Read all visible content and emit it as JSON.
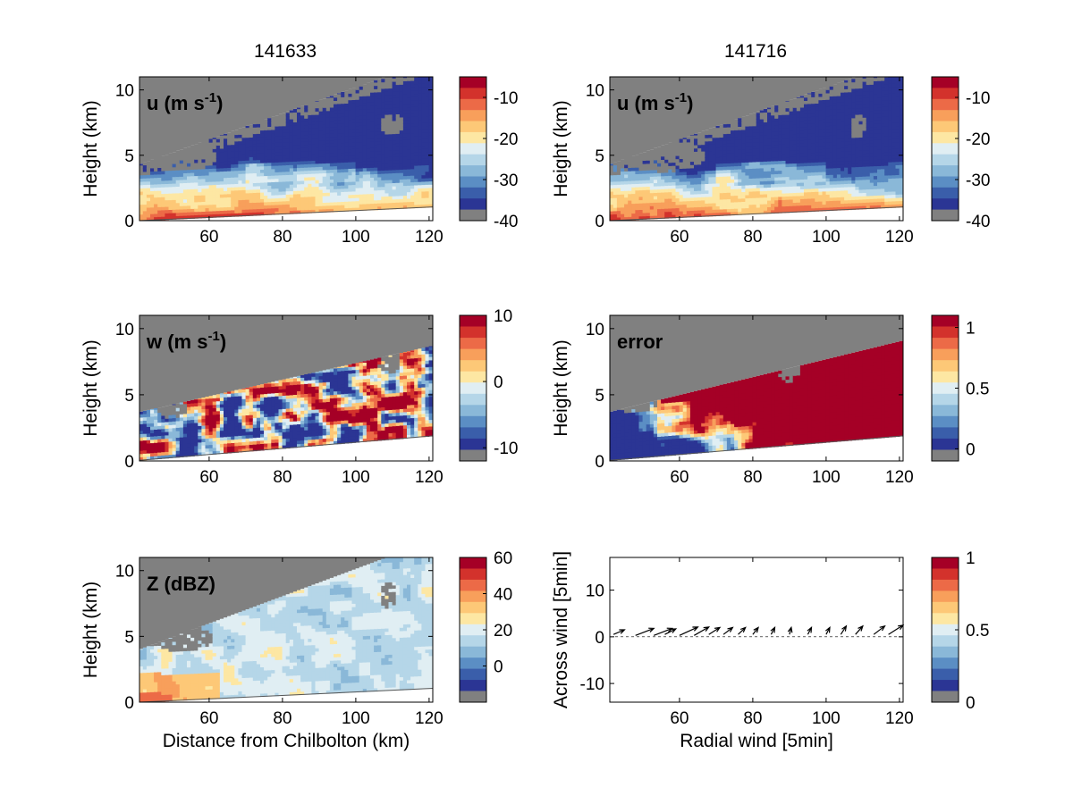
{
  "figure": {
    "column_titles": [
      "141633",
      "141716"
    ],
    "colors": {
      "masked": "#808080",
      "diverging_12": [
        "#2b3594",
        "#3a5eaa",
        "#5b8ec4",
        "#8ab8d8",
        "#b5d6e8",
        "#e0eef3",
        "#fde7a3",
        "#fdc877",
        "#f89f5b",
        "#ec6a47",
        "#d3322c",
        "#a50026"
      ],
      "arrow": "#000000"
    }
  },
  "chart_data": [
    {
      "id": "u-141633",
      "type": "heatmap",
      "column_title": "141633",
      "panel_label": {
        "main": "u (m s",
        "sup": "-1",
        "tail": ")"
      },
      "xlabel": "",
      "ylabel": "Height (km)",
      "xlim": [
        41,
        121
      ],
      "ylim": [
        0,
        11
      ],
      "xticks": [
        "60",
        "80",
        "100",
        "120"
      ],
      "yticks": [
        "0",
        "5",
        "10"
      ],
      "colorbar": {
        "range": [
          -40,
          -5
        ],
        "ticks": [
          "-10",
          "-20",
          "-30",
          "-40"
        ]
      },
      "coverage_top_km": {
        "x": [
          41,
          121
        ],
        "y": [
          4.3,
          12.3
        ]
      },
      "coverage_bottom_km": {
        "x": [
          41,
          121
        ],
        "y": [
          0.0,
          1.05
        ]
      },
      "description": "Easterly wind component, strongest (reddest, about -10) near the surface, bluer (-25 to -35) aloft"
    },
    {
      "id": "u-141716",
      "type": "heatmap",
      "column_title": "141716",
      "panel_label": {
        "main": "u (m s",
        "sup": "-1",
        "tail": ")"
      },
      "xlabel": "",
      "ylabel": "Height (km)",
      "xlim": [
        41,
        121
      ],
      "ylim": [
        0,
        11
      ],
      "xticks": [
        "60",
        "80",
        "100",
        "120"
      ],
      "yticks": [
        "0",
        "5",
        "10"
      ],
      "colorbar": {
        "range": [
          -40,
          -5
        ],
        "ticks": [
          "-10",
          "-20",
          "-30",
          "-40"
        ]
      },
      "coverage_top_km": {
        "x": [
          41,
          121
        ],
        "y": [
          4.3,
          12.3
        ]
      },
      "coverage_bottom_km": {
        "x": [
          41,
          121
        ],
        "y": [
          0.0,
          1.05
        ]
      }
    },
    {
      "id": "w-141633",
      "type": "heatmap",
      "panel_label": {
        "main": "w (m s",
        "sup": "-1",
        "tail": ")"
      },
      "xlabel": "",
      "ylabel": "Height (km)",
      "xlim": [
        41,
        121
      ],
      "ylim": [
        0,
        11
      ],
      "xticks": [
        "60",
        "80",
        "100",
        "120"
      ],
      "yticks": [
        "0",
        "5",
        "10"
      ],
      "colorbar": {
        "range": [
          -12,
          10
        ],
        "ticks": [
          "10",
          "0",
          "-10"
        ]
      },
      "coverage_top_km": {
        "x": [
          41,
          121
        ],
        "y": [
          3.7,
          8.7
        ]
      },
      "coverage_bottom_km": {
        "x": [
          41,
          121
        ],
        "y": [
          0.05,
          1.9
        ]
      },
      "description": "Vertical wind component, alternating strong updraft (red) and downdraft (blue) cells"
    },
    {
      "id": "error-141716",
      "type": "heatmap",
      "panel_label": {
        "main": "error",
        "sup": "",
        "tail": ""
      },
      "xlabel": "",
      "ylabel": "Height (km)",
      "xlim": [
        41,
        121
      ],
      "ylim": [
        0,
        11
      ],
      "xticks": [
        "60",
        "80",
        "100",
        "120"
      ],
      "yticks": [
        "0",
        "5",
        "10"
      ],
      "colorbar": {
        "range": [
          -0.1,
          1.1
        ],
        "ticks": [
          "1",
          "0.5",
          "0"
        ]
      },
      "coverage_top_km": {
        "x": [
          41,
          121
        ],
        "y": [
          3.7,
          9.1
        ]
      },
      "coverage_bottom_km": {
        "x": [
          41,
          121
        ],
        "y": [
          0.05,
          1.9
        ]
      },
      "description": "Retrieval error, low (blue) at short range, saturated (about 1, dark red) aloft and beyond 80 km"
    },
    {
      "id": "Z-141633",
      "type": "heatmap",
      "panel_label": {
        "main": "Z (dBZ)",
        "sup": "",
        "tail": ""
      },
      "xlabel": "Distance from Chilbolton (km)",
      "ylabel": "Height (km)",
      "xlim": [
        41,
        121
      ],
      "ylim": [
        0,
        11
      ],
      "xticks": [
        "60",
        "80",
        "100",
        "120"
      ],
      "yticks": [
        "0",
        "5",
        "10"
      ],
      "colorbar": {
        "range": [
          -20,
          60
        ],
        "ticks": [
          "60",
          "40",
          "20",
          "0"
        ]
      },
      "coverage_top_km": {
        "x": [
          41,
          121
        ],
        "y": [
          4.0,
          12.3
        ]
      },
      "coverage_bottom_km": {
        "x": [
          41,
          121
        ],
        "y": [
          0.0,
          1.05
        ]
      },
      "description": "Radar reflectivity, mostly 10-25 dBZ, about 30 dBZ in low levels below 60 km"
    },
    {
      "id": "wind-arrows",
      "type": "scatter",
      "marker": "arrow",
      "xlabel": "Radial wind [5min]",
      "ylabel": "Across wind [5min]",
      "xlim": [
        41,
        121
      ],
      "ylim": [
        -14,
        17
      ],
      "xticks": [
        "60",
        "80",
        "100",
        "120"
      ],
      "yticks": [
        "10",
        "0",
        "-10"
      ],
      "colorbar": {
        "range": [
          0,
          1
        ],
        "ticks": [
          "1",
          "0.5",
          "0"
        ]
      },
      "arrows": [
        {
          "x": 42,
          "y": 0.5,
          "dx": 3,
          "dy": 1.0
        },
        {
          "x": 48,
          "y": 0.3,
          "dx": 5,
          "dy": 1.5
        },
        {
          "x": 53,
          "y": 0.3,
          "dx": 5,
          "dy": 1.5
        },
        {
          "x": 56,
          "y": 0.5,
          "dx": 3,
          "dy": 1.2
        },
        {
          "x": 60,
          "y": 0.3,
          "dx": 5,
          "dy": 1.8
        },
        {
          "x": 64,
          "y": 0.3,
          "dx": 4,
          "dy": 1.8
        },
        {
          "x": 68,
          "y": 0.5,
          "dx": 3,
          "dy": 1.5
        },
        {
          "x": 72,
          "y": 0.5,
          "dx": 2.5,
          "dy": 1.5
        },
        {
          "x": 76,
          "y": 0.5,
          "dx": 2,
          "dy": 1.5
        },
        {
          "x": 80,
          "y": 0.5,
          "dx": 1.5,
          "dy": 1.5
        },
        {
          "x": 85,
          "y": 0.5,
          "dx": 1,
          "dy": 1.5
        },
        {
          "x": 90,
          "y": 0.5,
          "dx": 0.5,
          "dy": 1.5
        },
        {
          "x": 95,
          "y": 0.5,
          "dx": 1,
          "dy": 1.5
        },
        {
          "x": 100,
          "y": 0.5,
          "dx": 1,
          "dy": 1.5
        },
        {
          "x": 104,
          "y": 0.5,
          "dx": 1.5,
          "dy": 1.8
        },
        {
          "x": 108,
          "y": 0.5,
          "dx": 2,
          "dy": 1.8
        },
        {
          "x": 113,
          "y": 0.5,
          "dx": 3,
          "dy": 1.8
        },
        {
          "x": 117,
          "y": 0.5,
          "dx": 4,
          "dy": 2.0
        }
      ]
    }
  ]
}
